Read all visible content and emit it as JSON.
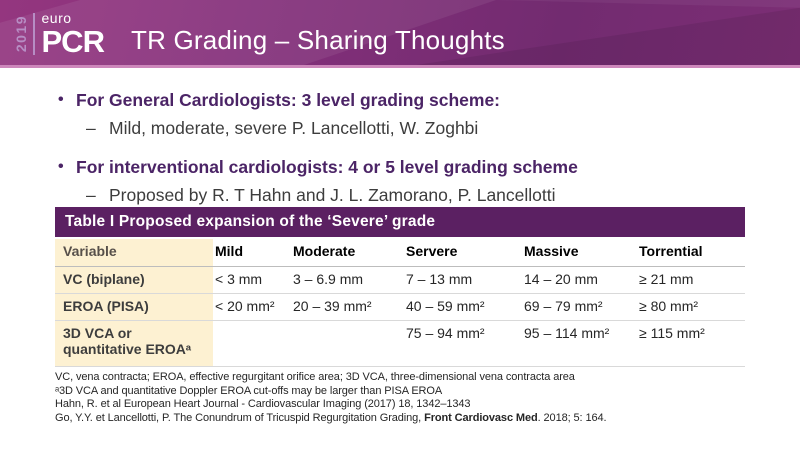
{
  "colors": {
    "header_gradient_start": "#94367f",
    "header_gradient_end": "#7c2e75",
    "header_underline": "#cd87bb",
    "table_title_bg": "#5b2062",
    "variable_column_bg": "#fdf1d2",
    "bullet_text": "#4b2466",
    "body_text": "#3d3d3d"
  },
  "header": {
    "year": "2019",
    "logo_top": "euro",
    "logo_main": "PCR",
    "title": "TR Grading – Sharing Thoughts"
  },
  "bullets": [
    {
      "marker": "•",
      "main": "For General Cardiologists: 3 level grading scheme:",
      "sub_marker": "–",
      "sub": "Mild, moderate, severe P.  Lancellotti, W. Zoghbi"
    },
    {
      "marker": "•",
      "main": "For interventional cardiologists: 4 or 5 level grading scheme",
      "sub_marker": "–",
      "sub": "Proposed by R. T Hahn and J. L. Zamorano, P. Lancellotti"
    }
  ],
  "table": {
    "title": "Table I Proposed expansion of the ‘Severe’ grade",
    "columns": [
      "Variable",
      "Mild",
      "Moderate",
      "Servere",
      "Massive",
      "Torrential"
    ],
    "rows": [
      {
        "variable": "VC (biplane)",
        "values": [
          "< 3 mm",
          "3 – 6.9 mm",
          "7 – 13 mm",
          "14 – 20 mm",
          "≥ 21 mm"
        ]
      },
      {
        "variable": "EROA (PISA)",
        "values": [
          "< 20 mm²",
          "20 – 39 mm²",
          "40 – 59 mm²",
          "69 – 79 mm²",
          "≥ 80 mm²"
        ]
      },
      {
        "variable": "3D VCA or quantitative EROAᵃ",
        "values": [
          "",
          "",
          "75 – 94 mm²",
          "95 – 114 mm²",
          "≥ 115 mm²"
        ]
      }
    ]
  },
  "footnotes": {
    "line1": "VC, vena contracta; EROA, effective regurgitant orifice area; 3D VCA, three-dimensional vena contracta area",
    "line2": "ᵃ3D VCA and quantitative Doppler EROA cut-offs may be larger than PISA EROA",
    "line3": "Hahn, R. et al European Heart Journal - Cardiovascular Imaging (2017) 18, 1342–1343",
    "line4_prefix": "Go, Y.Y. et Lancellotti, P.  The Conundrum of Tricuspid Regurgitation Grading, ",
    "line4_bold": "Front Cardiovasc Med",
    "line4_suffix": ". 2018; 5: 164."
  }
}
